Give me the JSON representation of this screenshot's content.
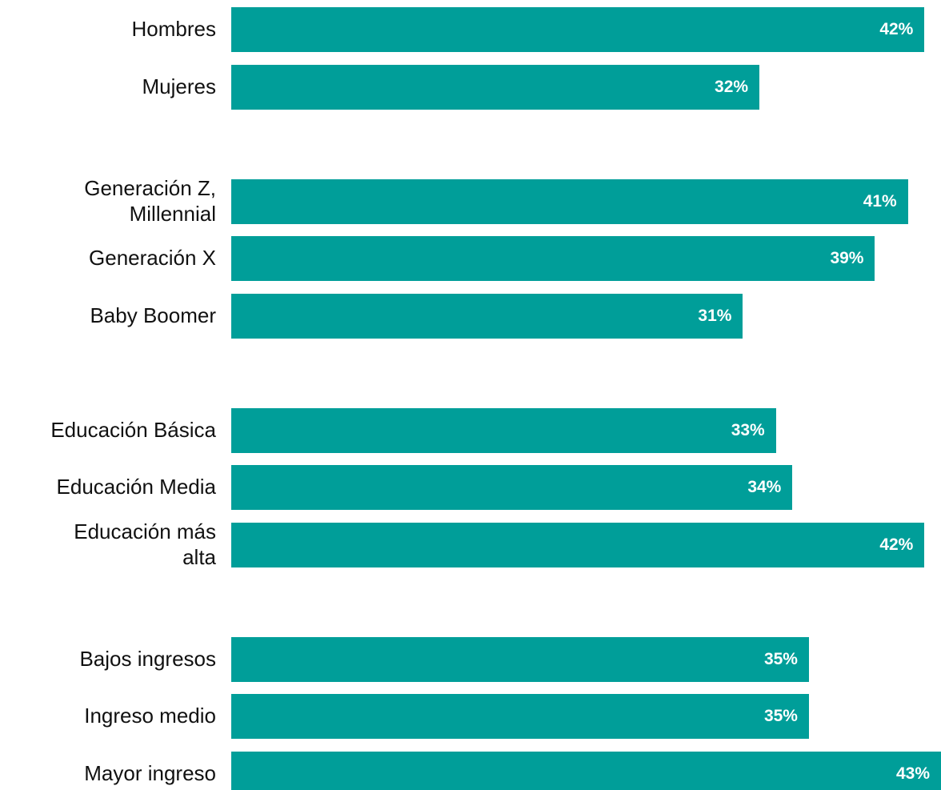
{
  "chart_data": {
    "type": "bar",
    "orientation": "horizontal",
    "color": "#009e99",
    "categories": [
      "Hombres",
      "Mujeres",
      null,
      "Generación Z,\nMillennial",
      "Generación X",
      "Baby Boomer",
      null,
      "Educación Básica",
      "Educación Media",
      "Educación más\nalta",
      null,
      "Bajos ingresos",
      "Ingreso medio",
      "Mayor ingreso"
    ],
    "values": [
      42,
      32,
      null,
      41,
      39,
      31,
      null,
      33,
      34,
      42,
      null,
      35,
      35,
      43
    ],
    "value_labels": [
      "42%",
      "32%",
      null,
      "41%",
      "39%",
      "31%",
      null,
      "33%",
      "34%",
      "42%",
      null,
      "35%",
      "35%",
      "43%"
    ]
  }
}
